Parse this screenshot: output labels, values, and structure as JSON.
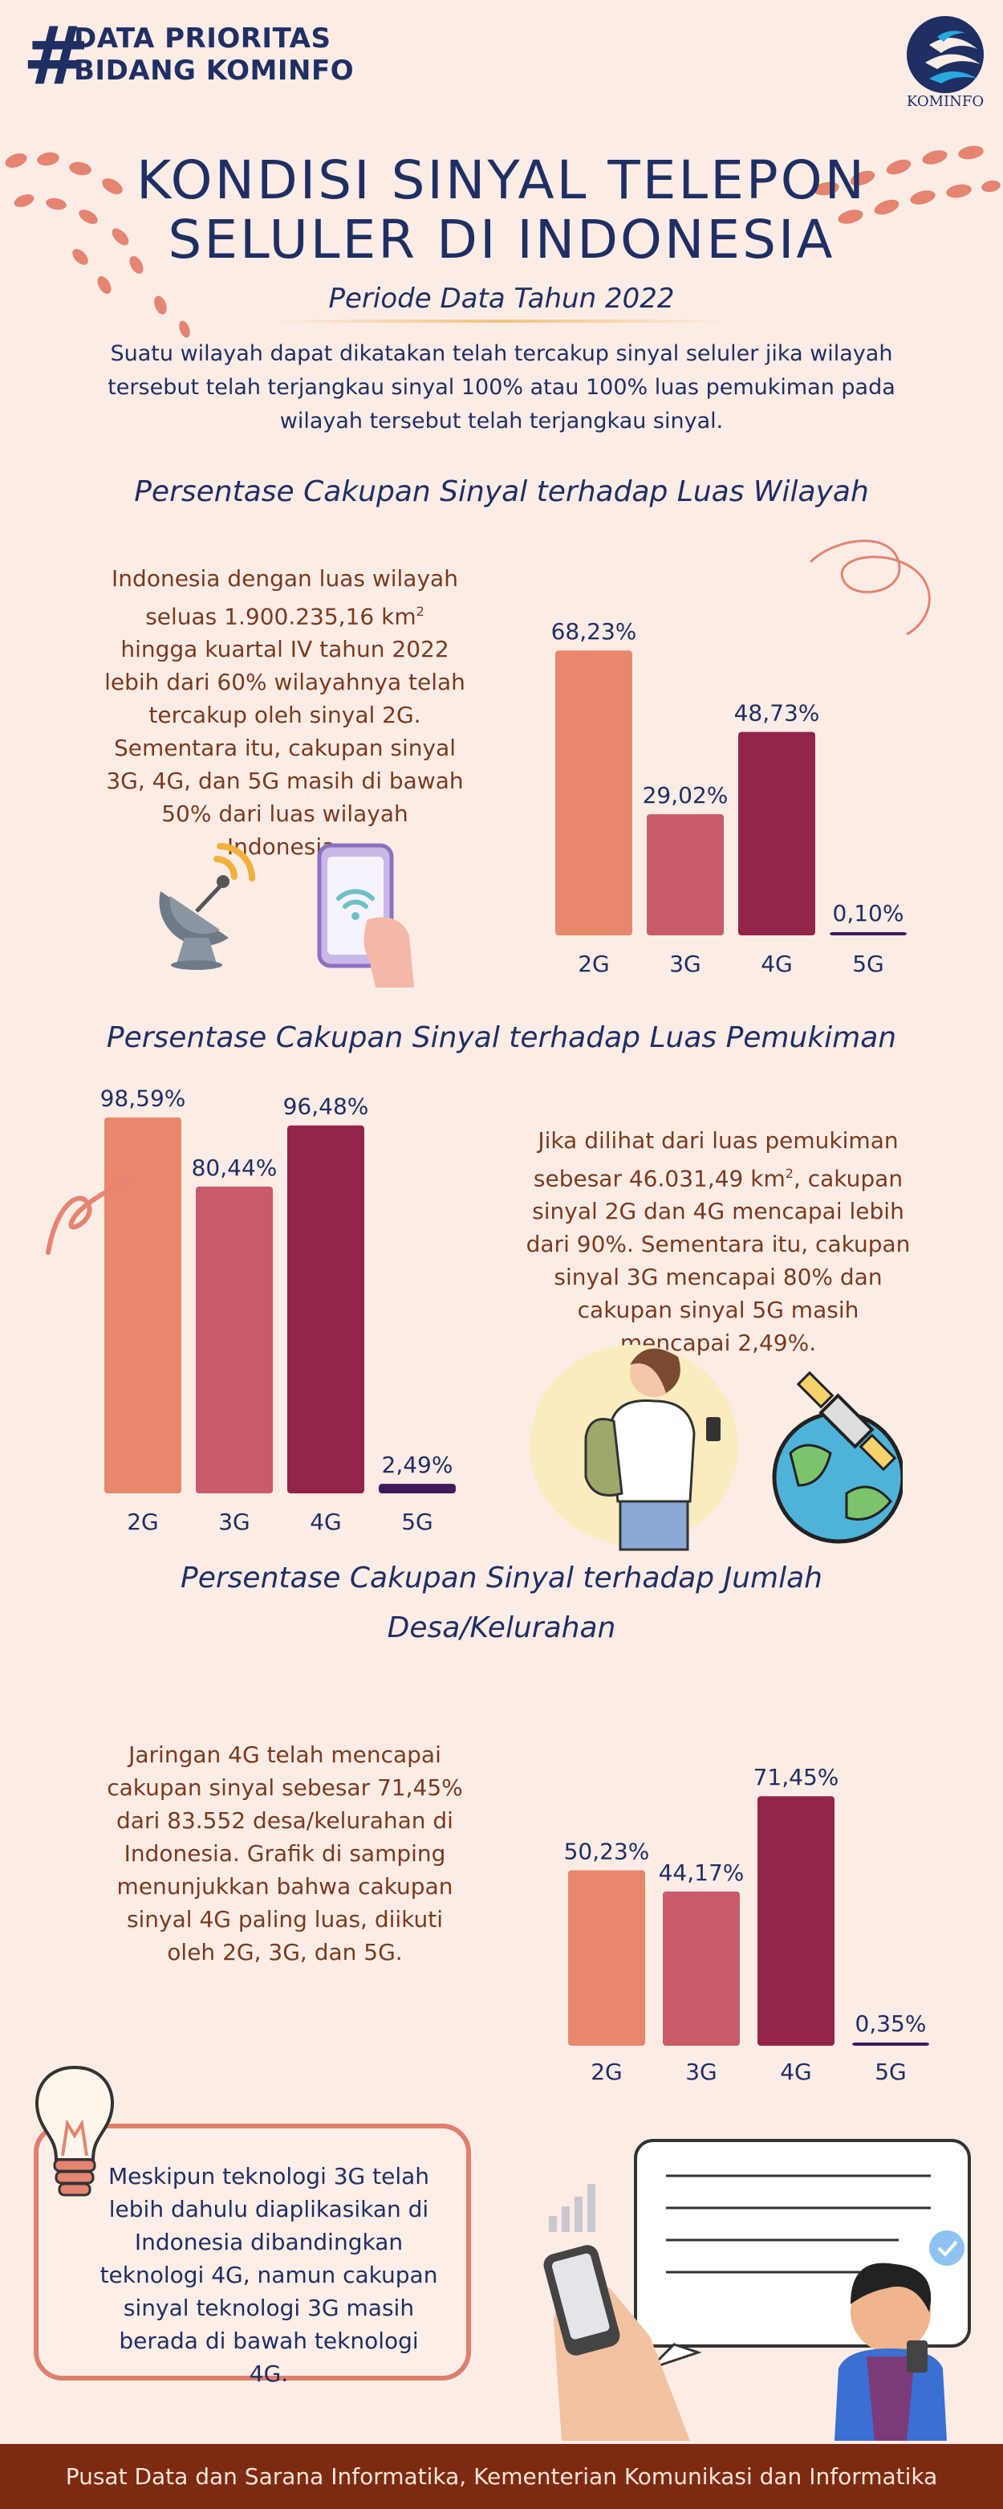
{
  "header": {
    "hash": "#",
    "line1": "DATA PRIORITAS",
    "line2": "BIDANG KOMINFO",
    "logo_label": "KOMINFO"
  },
  "title": {
    "line1": "KONDISI SINYAL TELEPON",
    "line2": "SELULER DI INDONESIA",
    "period": "Periode Data Tahun 2022"
  },
  "intro": "Suatu wilayah dapat dikatakan telah tercakup sinyal seluler jika wilayah tersebut telah terjangkau sinyal 100% atau 100% luas pemukiman pada wilayah tersebut telah terjangkau sinyal.",
  "sections": {
    "wilayah": {
      "title": "Persentase Cakupan Sinyal terhadap Luas Wilayah",
      "text_before": "Indonesia dengan luas wilayah seluas 1.900.235,16 km",
      "sup": "2",
      "text_after": " hingga kuartal IV tahun 2022 lebih dari 60% wilayahnya telah tercakup oleh sinyal 2G. Sementara itu, cakupan sinyal 3G, 4G, dan 5G masih di bawah 50% dari luas wilayah Indonesia."
    },
    "pemukiman": {
      "title": "Persentase Cakupan Sinyal terhadap Luas Pemukiman",
      "text_before": "Jika dilihat dari luas pemukiman sebesar 46.031,49 km",
      "sup": "2",
      "text_after": ", cakupan sinyal 2G dan 4G mencapai lebih dari 90%. Sementara itu, cakupan sinyal 3G mencapai 80% dan cakupan sinyal 5G masih mencapai 2,49%."
    },
    "desa": {
      "title_line1": "Persentase Cakupan Sinyal terhadap Jumlah",
      "title_line2": "Desa/Kelurahan",
      "text": "Jaringan 4G telah mencapai cakupan sinyal sebesar 71,45% dari 83.552 desa/kelurahan di Indonesia. Grafik di samping menunjukkan bahwa cakupan sinyal 4G paling luas, diikuti oleh 2G, 3G, dan 5G."
    }
  },
  "note": "Meskipun teknologi 3G telah lebih dahulu diaplikasikan di Indonesia dibandingkan teknologi 4G, namun cakupan sinyal teknologi 3G masih berada di bawah teknologi 4G.",
  "footer": "Pusat Data dan Sarana Informatika, Kementerian Komunikasi dan Informatika",
  "colors": {
    "2G": "#e8876c",
    "3G": "#c95b69",
    "4G": "#93244a",
    "5G": "#3d1a5c",
    "navy": "#1f2f63"
  },
  "chart_data": [
    {
      "type": "bar",
      "title": "Persentase Cakupan Sinyal terhadap Luas Wilayah",
      "categories": [
        "2G",
        "3G",
        "4G",
        "5G"
      ],
      "values": [
        68.23,
        29.02,
        48.73,
        0.1
      ],
      "labels": [
        "68,23%",
        "29,02%",
        "48,73%",
        "0,10%"
      ],
      "ylim": [
        0,
        100
      ]
    },
    {
      "type": "bar",
      "title": "Persentase Cakupan Sinyal terhadap Luas Pemukiman",
      "categories": [
        "2G",
        "3G",
        "4G",
        "5G"
      ],
      "values": [
        98.59,
        80.44,
        96.48,
        2.49
      ],
      "labels": [
        "98,59%",
        "80,44%",
        "96,48%",
        "2,49%"
      ],
      "ylim": [
        0,
        100
      ]
    },
    {
      "type": "bar",
      "title": "Persentase Cakupan Sinyal terhadap Jumlah Desa/Kelurahan",
      "categories": [
        "2G",
        "3G",
        "4G",
        "5G"
      ],
      "values": [
        50.23,
        44.17,
        71.45,
        0.35
      ],
      "labels": [
        "50,23%",
        "44,17%",
        "71,45%",
        "0,35%"
      ],
      "ylim": [
        0,
        100
      ]
    }
  ]
}
